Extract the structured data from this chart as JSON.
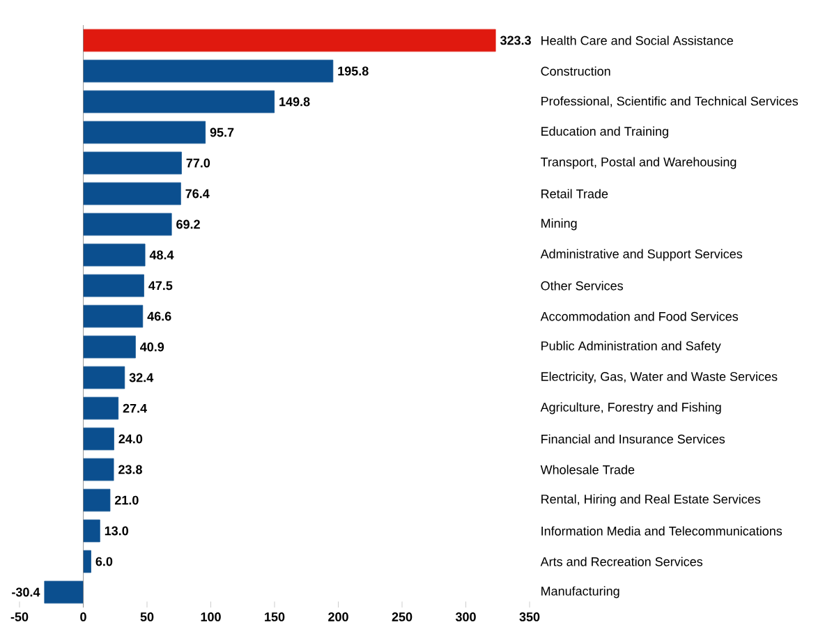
{
  "chart_data": {
    "type": "bar",
    "orientation": "horizontal",
    "categories": [
      "Health Care and Social Assistance",
      "Construction",
      "Professional, Scientific and Technical Services",
      "Education and Training",
      "Transport, Postal and Warehousing",
      "Retail Trade",
      "Mining",
      "Administrative and Support Services",
      "Other Services",
      "Accommodation and Food Services",
      "Public Administration and Safety",
      "Electricity, Gas, Water and Waste Services",
      "Agriculture, Forestry and Fishing",
      "Financial and Insurance Services",
      "Wholesale Trade",
      "Rental, Hiring and Real Estate Services",
      "Information Media and Telecommunications",
      "Arts and Recreation Services",
      "Manufacturing"
    ],
    "values": [
      323.3,
      195.8,
      149.8,
      95.7,
      77.0,
      76.4,
      69.2,
      48.4,
      47.5,
      46.6,
      40.9,
      32.4,
      27.4,
      24.0,
      23.8,
      21.0,
      13.0,
      6.0,
      -30.4
    ],
    "colors": [
      "#e0190f",
      "#0b4f8f",
      "#0b4f8f",
      "#0b4f8f",
      "#0b4f8f",
      "#0b4f8f",
      "#0b4f8f",
      "#0b4f8f",
      "#0b4f8f",
      "#0b4f8f",
      "#0b4f8f",
      "#0b4f8f",
      "#0b4f8f",
      "#0b4f8f",
      "#0b4f8f",
      "#0b4f8f",
      "#0b4f8f",
      "#0b4f8f",
      "#0b4f8f"
    ],
    "xlim": [
      -50,
      350
    ],
    "xticks": [
      -50,
      0,
      50,
      100,
      150,
      200,
      250,
      300,
      350
    ],
    "value_labels": [
      "323.3",
      "195.8",
      "149.8",
      "95.7",
      "77.0",
      "76.4",
      "69.2",
      "48.4",
      "47.5",
      "46.6",
      "40.9",
      "32.4",
      "27.4",
      "24.0",
      "23.8",
      "21.0",
      "13.0",
      "6.0",
      "-30.4"
    ]
  }
}
